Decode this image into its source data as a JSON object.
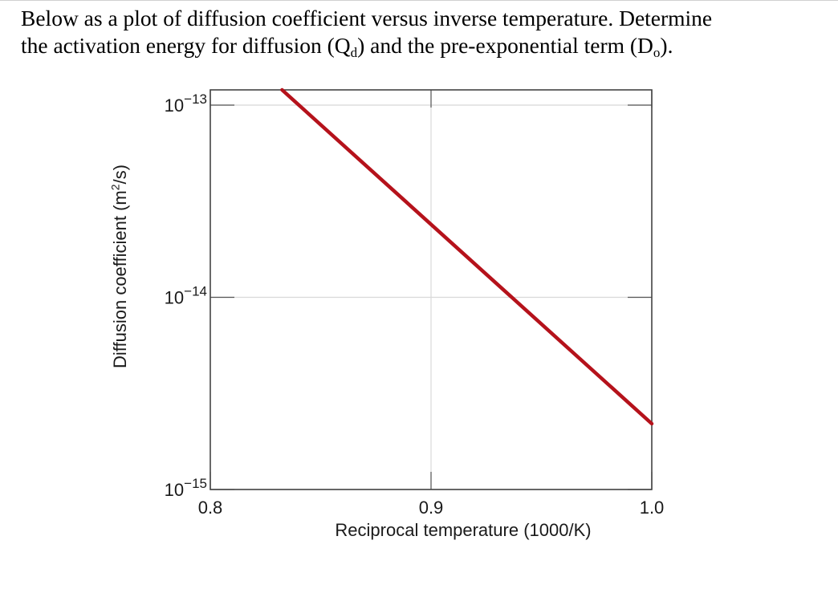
{
  "question": {
    "line1": "Below as a plot of diffusion coefficient versus inverse temperature.  Determine",
    "line2_a": "the activation energy for diffusion (Q",
    "line2_sub1": "d",
    "line2_b": ") and the pre-exponential term (D",
    "line2_sub2": "o",
    "line2_c": ")."
  },
  "chart_data": {
    "type": "line",
    "xlabel": "Reciprocal temperature (1000/K)",
    "ylabel_text": "Diffusion coefficient (m",
    "ylabel_sup": "2",
    "ylabel_end": "/s)",
    "xlim": [
      0.8,
      1.0
    ],
    "ylim": [
      1e-15,
      1.2e-13
    ],
    "yscale": "log",
    "xticks": [
      {
        "value": 0.8,
        "label": "0.8"
      },
      {
        "value": 0.9,
        "label": "0.9"
      },
      {
        "value": 1.0,
        "label": "1.0"
      }
    ],
    "yticks": [
      {
        "value": 1e-13,
        "base": "10",
        "exp": "−13"
      },
      {
        "value": 1e-14,
        "base": "10",
        "exp": "−14"
      },
      {
        "value": 1e-15,
        "base": "10",
        "exp": "−15"
      }
    ],
    "grid": true,
    "series": [
      {
        "color": "#b5121b",
        "x": [
          0.8325,
          1.0
        ],
        "y": [
          1.2e-13,
          2.2e-15
        ]
      }
    ]
  }
}
